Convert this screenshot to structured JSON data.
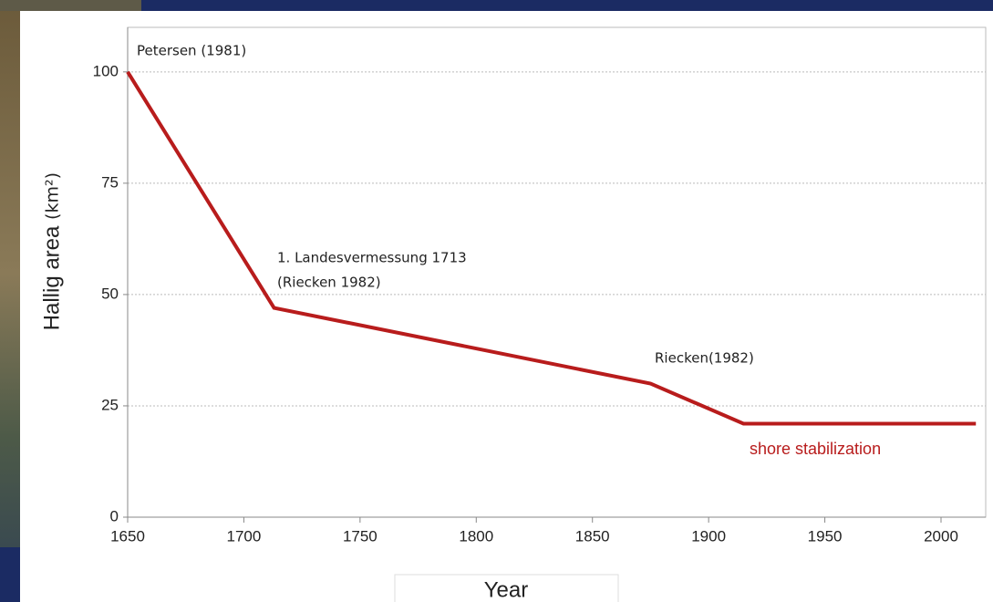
{
  "chart_data": {
    "type": "line",
    "ylabel": "Hallig area",
    "ylabel_unit": "(km²)",
    "xlabel": "Year",
    "x": [
      1650,
      1713,
      1875,
      1915,
      2015
    ],
    "series": [
      {
        "color": "#b81c1c",
        "values": [
          100,
          47,
          30,
          21,
          21
        ]
      }
    ],
    "xlim": [
      1650,
      2018
    ],
    "xticks": [
      1650,
      1700,
      1750,
      1800,
      1850,
      1900,
      1950,
      2000
    ],
    "ylim": [
      0,
      110
    ],
    "yticks": [
      0,
      25,
      50,
      75,
      100
    ],
    "grid": true,
    "annotations": [
      "Petersen (1981)",
      "1. Landesvermessung 1713",
      "(Riecken 1982)",
      "Riecken(1982)",
      "shore stabilization"
    ]
  }
}
